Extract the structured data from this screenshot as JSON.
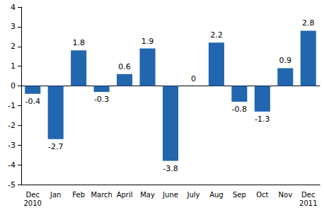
{
  "chart_data": {
    "type": "bar",
    "categories": [
      "Dec\n2010",
      "Jan",
      "Feb",
      "March",
      "April",
      "May",
      "June",
      "July",
      "Aug",
      "Sep",
      "Oct",
      "Nov",
      "Dec\n2011"
    ],
    "values": [
      -0.4,
      -2.7,
      1.8,
      -0.3,
      0.6,
      1.9,
      -3.8,
      0,
      2.2,
      -0.8,
      -1.3,
      0.9,
      2.8
    ],
    "color": "#2166ae",
    "ylim": [
      -5,
      4
    ],
    "yticks": [
      -5,
      -4,
      -3,
      -2,
      -1,
      0,
      1,
      2,
      3,
      4
    ],
    "grid": false,
    "data_labels": true
  }
}
